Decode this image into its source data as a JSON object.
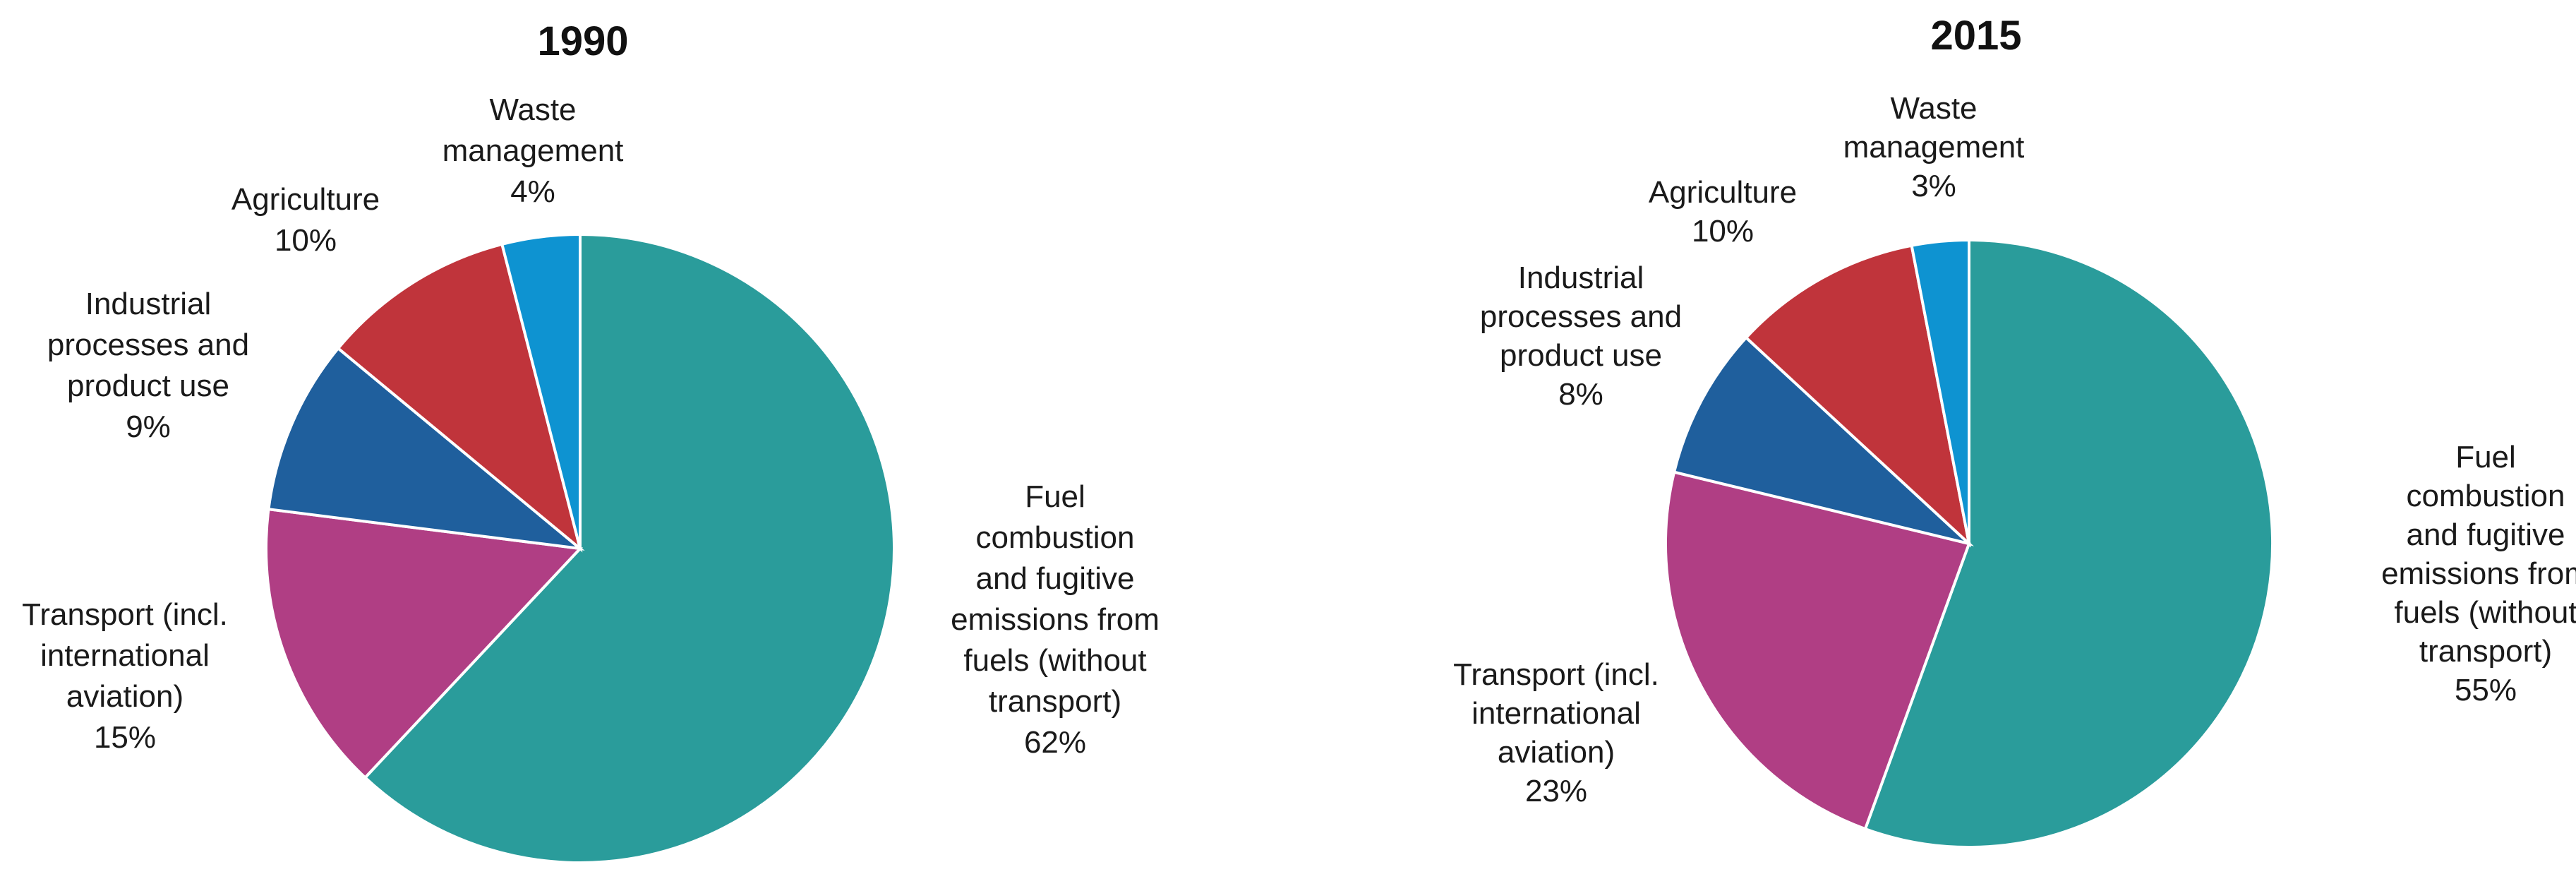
{
  "chart_data": [
    {
      "type": "pie",
      "title": "1990",
      "unit": "%",
      "start": "top, clockwise",
      "slices": [
        {
          "name": "Fuel combustion and fugitive emissions from fuels (without transport)",
          "lines": [
            "Fuel",
            "combustion",
            "and fugitive",
            "emissions from",
            "fuels (without",
            "transport)"
          ],
          "value": 62,
          "value_label": "62%",
          "color": "#2a9c9b"
        },
        {
          "name": "Transport (incl. international aviation)",
          "lines": [
            "Transport  (incl.",
            "international",
            "aviation)"
          ],
          "value": 15,
          "value_label": "15%",
          "color": "#b03e84"
        },
        {
          "name": "Industrial processes and product use",
          "lines": [
            "Industrial",
            "processes and",
            "product use"
          ],
          "value": 9,
          "value_label": "9%",
          "color": "#1f5f9d"
        },
        {
          "name": "Agriculture",
          "lines": [
            "Agriculture"
          ],
          "value": 10,
          "value_label": "10%",
          "color": "#c0343b"
        },
        {
          "name": "Waste management",
          "lines": [
            "Waste",
            "management"
          ],
          "value": 4,
          "value_label": "4%",
          "color": "#0e93d1"
        }
      ]
    },
    {
      "type": "pie",
      "title": "2015",
      "unit": "%",
      "start": "top, clockwise",
      "slices": [
        {
          "name": "Fuel combustion and fugitive emissions from fuels (without transport)",
          "lines": [
            "Fuel",
            "combustion",
            "and fugitive",
            "emissions from",
            "fuels (without",
            "transport)"
          ],
          "value": 55,
          "value_label": "55%",
          "color": "#2a9c9b"
        },
        {
          "name": "Transport (incl. international aviation)",
          "lines": [
            "Transport  (incl.",
            "international",
            "aviation)"
          ],
          "value": 23,
          "value_label": "23%",
          "color": "#b03e84"
        },
        {
          "name": "Industrial processes and product use",
          "lines": [
            "Industrial",
            "processes and",
            "product use"
          ],
          "value": 8,
          "value_label": "8%",
          "color": "#1f5f9d"
        },
        {
          "name": "Agriculture",
          "lines": [
            "Agriculture"
          ],
          "value": 10,
          "value_label": "10%",
          "color": "#c0343b"
        },
        {
          "name": "Waste management",
          "lines": [
            "Waste",
            "management"
          ],
          "value": 3,
          "value_label": "3%",
          "color": "#0e93d1"
        }
      ]
    }
  ]
}
